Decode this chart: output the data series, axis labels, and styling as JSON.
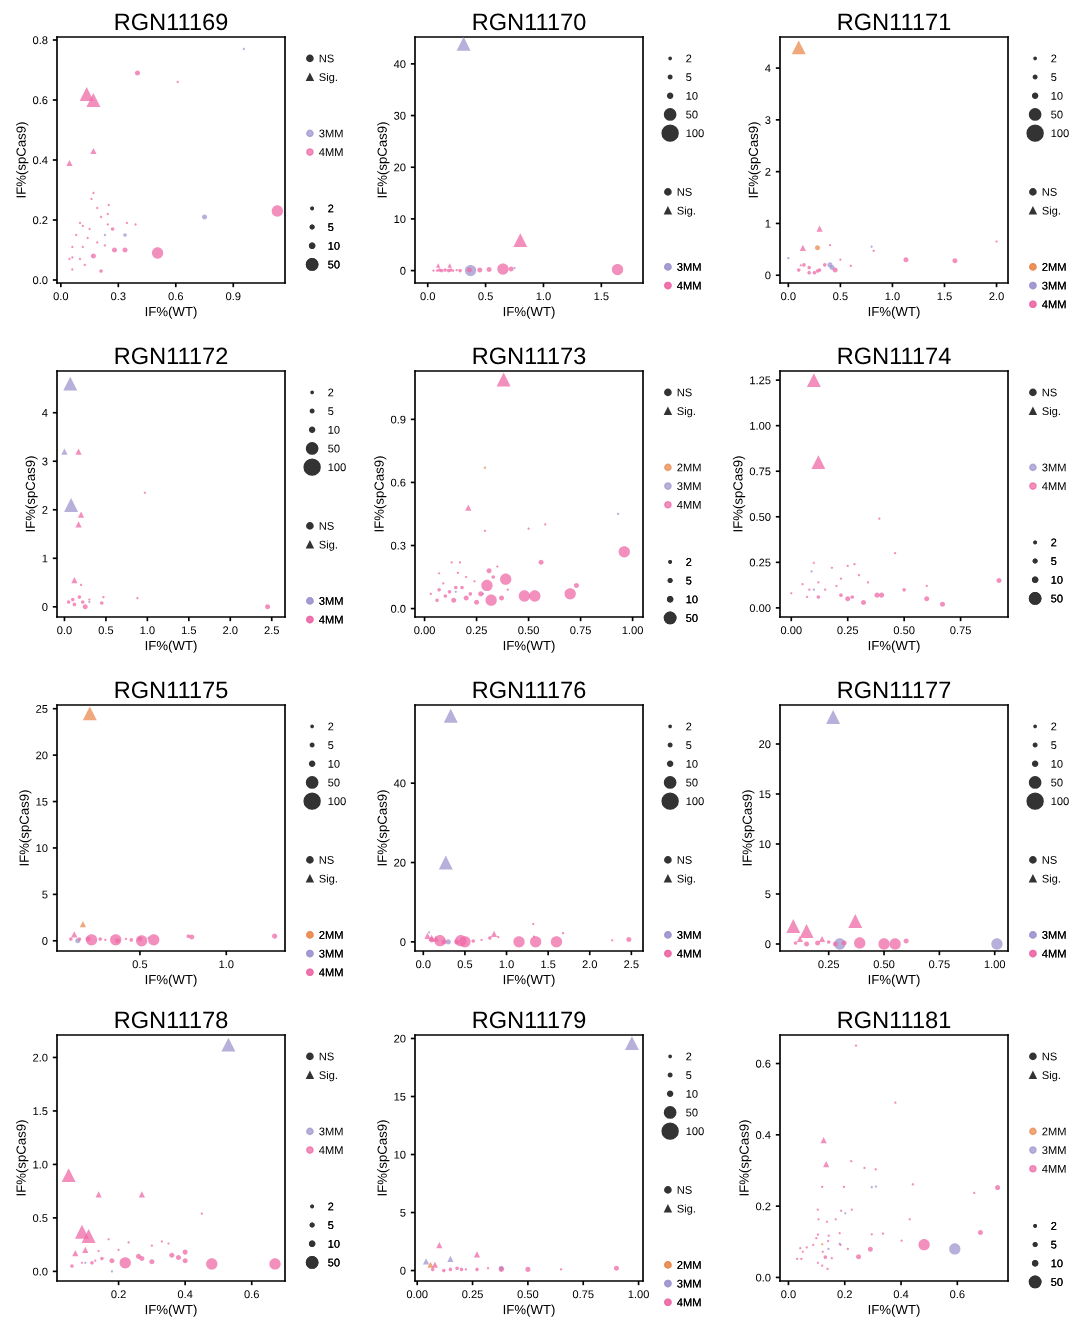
{
  "chart_data": [
    {
      "type": "bubble",
      "title": "RGN11169",
      "xlabel": "IF%(WT)",
      "ylabel": "IF%(spCas9)",
      "legend": "right",
      "xlim": [
        -0.02,
        1.17
      ],
      "ylim": [
        -0.01,
        0.81
      ],
      "xticks": [
        {
          "value": 0,
          "label": "0.0"
        },
        0.3,
        0.6,
        0.9
      ],
      "yticks": [
        {
          "value": 0,
          "label": "0.0"
        },
        0.2,
        0.4,
        0.6,
        0.8
      ],
      "size_legend": [
        2,
        5,
        10,
        50
      ],
      "series": [
        {
          "name": "NS",
          "color": "#333333",
          "marker": "circle"
        },
        {
          "name": "Sig.",
          "color": "#333333",
          "marker": "triangle"
        },
        {
          "name": "3MM",
          "color": "#9d95cf",
          "marker": "circle",
          "x": [
            0.955,
            0.75,
            0.335,
            0.23
          ],
          "values": [
            0.77,
            0.21,
            0.15,
            0.15
          ],
          "sizes": [
            2,
            10,
            5,
            2
          ]
        },
        {
          "name": "4MM",
          "color": "#ee6aa7",
          "marker": "circle",
          "x": [
            0.4,
            0.61,
            1.13,
            0.505,
            0.335,
            0.28,
            0.17,
            0.21,
            0.27,
            0.17,
            0.16,
            0.19,
            0.25,
            0.245,
            0.21,
            0.245,
            0.345,
            0.39,
            0.1,
            0.115,
            0.15,
            0.08,
            0.06,
            0.115,
            0.14,
            0.06,
            0.045,
            0.1,
            0.125,
            0.06,
            0.19,
            0.23
          ],
          "values": [
            0.69,
            0.66,
            0.23,
            0.09,
            0.1,
            0.1,
            0.08,
            0.03,
            0.17,
            0.29,
            0.27,
            0.24,
            0.25,
            0.22,
            0.21,
            0.185,
            0.19,
            0.185,
            0.19,
            0.18,
            0.17,
            0.15,
            0.11,
            0.11,
            0.14,
            0.075,
            0.07,
            0.07,
            0.05,
            0.035,
            0.125,
            0.115
          ],
          "sizes": [
            10,
            2,
            50,
            50,
            10,
            10,
            10,
            5,
            5,
            2,
            2,
            2,
            2,
            2,
            2,
            2,
            2,
            2,
            2,
            2,
            2,
            2,
            2,
            2,
            2,
            2,
            2,
            2,
            2,
            2,
            2,
            2
          ]
        },
        {
          "color": "#ee6aa7",
          "marker": "triangle",
          "x": [
            0.135,
            0.17,
            0.17,
            0.045
          ],
          "values": [
            0.62,
            0.6,
            0.43,
            0.39
          ],
          "sizes": [
            50,
            50,
            10,
            10
          ]
        }
      ]
    },
    {
      "type": "bubble",
      "title": "RGN11170",
      "xlabel": "IF%(WT)",
      "ylabel": "IF%(spCas9)",
      "legend": "right",
      "xlim": [
        -0.11,
        1.86
      ],
      "ylim": [
        -2.4,
        45.2
      ],
      "xticks": [
        {
          "value": 0,
          "label": "0.0"
        },
        0.5,
        {
          "value": 1,
          "label": "1.0"
        },
        1.5
      ],
      "yticks": [
        0,
        10,
        20,
        30,
        40
      ],
      "size_legend": [
        2,
        5,
        10,
        50,
        100
      ],
      "series": [
        {
          "name": "NS",
          "color": "#333333",
          "marker": "circle"
        },
        {
          "name": "Sig.",
          "color": "#333333",
          "marker": "triangle"
        },
        {
          "color": "#9d95cf",
          "marker": "triangle",
          "x": [
            0.31
          ],
          "values": [
            43.9
          ],
          "sizes": [
            50
          ]
        },
        {
          "color": "#ee6aa7",
          "marker": "triangle",
          "x": [
            0.8,
            0.09,
            0.19
          ],
          "values": [
            5.9,
            1.0,
            1.0
          ],
          "sizes": [
            50,
            5,
            5
          ]
        },
        {
          "name": "3MM",
          "color": "#9d95cf",
          "marker": "circle",
          "x": [
            0.37,
            0.75
          ],
          "values": [
            0.0,
            0.5
          ],
          "sizes": [
            50,
            2
          ]
        },
        {
          "name": "4MM",
          "color": "#ee6aa7",
          "marker": "circle",
          "x": [
            1.64,
            0.65,
            0.05,
            0.08,
            0.1,
            0.12,
            0.15,
            0.18,
            0.2,
            0.22,
            0.25,
            0.28,
            0.36,
            0.45,
            0.53,
            0.72
          ],
          "values": [
            0.2,
            0.3,
            0,
            0,
            0.1,
            0,
            0.1,
            0,
            0.1,
            0,
            0.1,
            0,
            0.1,
            0.1,
            0.2,
            0.3
          ],
          "sizes": [
            50,
            50,
            2,
            2,
            5,
            5,
            5,
            5,
            5,
            2,
            2,
            5,
            10,
            10,
            10,
            10
          ]
        }
      ]
    },
    {
      "type": "bubble",
      "title": "RGN11171",
      "xlabel": "IF%(WT)",
      "ylabel": "IF%(spCas9)",
      "legend": "right",
      "xlim": [
        -0.08,
        2.11
      ],
      "ylim": [
        -0.15,
        4.6
      ],
      "xticks": [
        {
          "value": 0,
          "label": "0.0"
        },
        0.5,
        {
          "value": 1,
          "label": "1.0"
        },
        1.5,
        {
          "value": 2,
          "label": "2.0"
        }
      ],
      "yticks": [
        0,
        1,
        2,
        3,
        4
      ],
      "size_legend": [
        2,
        5,
        10,
        50,
        100
      ],
      "series": [
        {
          "name": "NS",
          "color": "#333333",
          "marker": "circle"
        },
        {
          "name": "Sig.",
          "color": "#333333",
          "marker": "triangle"
        },
        {
          "color": "#ea8a4f",
          "marker": "triangle",
          "x": [
            0.1
          ],
          "values": [
            4.4
          ],
          "sizes": [
            50
          ]
        },
        {
          "name": "2MM",
          "color": "#ea8a4f",
          "marker": "circle",
          "x": [
            0.28
          ],
          "values": [
            0.53
          ],
          "sizes": [
            10
          ]
        },
        {
          "color": "#ee6aa7",
          "marker": "triangle",
          "x": [
            0.3,
            0.14,
            0.12
          ],
          "values": [
            0.9,
            0.53,
            0.2
          ],
          "sizes": [
            10,
            10,
            2
          ]
        },
        {
          "name": "3MM",
          "color": "#9d95cf",
          "marker": "circle",
          "x": [
            0.0,
            0.8,
            0.4,
            0.42
          ],
          "values": [
            0.33,
            0.55,
            0.2,
            0.15
          ],
          "sizes": [
            2,
            2,
            10,
            10
          ]
        },
        {
          "name": "4MM",
          "color": "#ee6aa7",
          "marker": "circle",
          "x": [
            1.13,
            1.6,
            2.0,
            0.6,
            0.82,
            0.4,
            0.1,
            0.15,
            0.2,
            0.25,
            0.3,
            0.35,
            0.45,
            0.5,
            0.2,
            0.28
          ],
          "values": [
            0.3,
            0.28,
            0.65,
            0.18,
            0.47,
            0.58,
            0.1,
            0.2,
            0.15,
            0.05,
            0.1,
            0.2,
            0.1,
            0.3,
            0.05,
            0.08
          ],
          "sizes": [
            10,
            10,
            2,
            2,
            2,
            2,
            5,
            5,
            5,
            5,
            5,
            5,
            10,
            2,
            5,
            5
          ]
        }
      ]
    },
    {
      "type": "bubble",
      "title": "RGN11172",
      "xlabel": "IF%(WT)",
      "ylabel": "IF%(spCas9)",
      "legend": "right",
      "xlim": [
        -0.09,
        2.66
      ],
      "ylim": [
        -0.21,
        4.86
      ],
      "xticks": [
        {
          "value": 0,
          "label": "0.0"
        },
        0.5,
        {
          "value": 1,
          "label": "1.0"
        },
        1.5,
        {
          "value": 2,
          "label": "2.0"
        },
        2.5
      ],
      "yticks": [
        0,
        1,
        2,
        3,
        4
      ],
      "size_legend": [
        2,
        5,
        10,
        50,
        100
      ],
      "series": [
        {
          "name": "NS",
          "color": "#333333",
          "marker": "circle"
        },
        {
          "name": "Sig.",
          "color": "#333333",
          "marker": "triangle"
        },
        {
          "color": "#9d95cf",
          "marker": "triangle",
          "x": [
            0.07,
            0.0,
            0.08
          ],
          "values": [
            4.6,
            3.2,
            2.1
          ],
          "sizes": [
            50,
            10,
            50
          ]
        },
        {
          "color": "#ee6aa7",
          "marker": "triangle",
          "x": [
            0.17,
            0.2,
            0.17,
            0.12
          ],
          "values": [
            3.2,
            1.9,
            1.7,
            0.55
          ],
          "sizes": [
            10,
            10,
            10,
            10
          ]
        },
        {
          "name": "3MM",
          "color": "#9d95cf",
          "marker": "circle",
          "x": [
            0.3
          ],
          "values": [
            0.1
          ],
          "sizes": [
            2
          ]
        },
        {
          "name": "4MM",
          "color": "#ee6aa7",
          "marker": "circle",
          "x": [
            0.97,
            0.88,
            2.45,
            0.47,
            0.45,
            0.2,
            0.05,
            0.1,
            0.12,
            0.18,
            0.22,
            0.25,
            0.3
          ],
          "values": [
            2.35,
            0.18,
            0.0,
            0.2,
            0.08,
            0.45,
            0.1,
            0.15,
            0.05,
            0.2,
            0.1,
            0.0,
            0.15
          ],
          "sizes": [
            2,
            2,
            10,
            2,
            5,
            2,
            5,
            5,
            5,
            5,
            5,
            10,
            2
          ]
        }
      ]
    },
    {
      "type": "bubble",
      "title": "RGN11173",
      "xlabel": "IF%(WT)",
      "ylabel": "IF%(spCas9)",
      "legend": "right",
      "xlim": [
        -0.046,
        1.05
      ],
      "ylim": [
        -0.04,
        1.13
      ],
      "xticks": [
        {
          "value": 0,
          "label": "0.00"
        },
        0.25,
        {
          "value": 0.5,
          "label": "0.50"
        },
        0.75,
        {
          "value": 1,
          "label": "1.00"
        }
      ],
      "yticks": [
        {
          "value": 0,
          "label": "0.0"
        },
        0.3,
        0.6,
        0.9
      ],
      "size_legend": [
        2,
        5,
        10,
        50
      ],
      "series": [
        {
          "name": "NS",
          "color": "#333333",
          "marker": "circle"
        },
        {
          "name": "Sig.",
          "color": "#333333",
          "marker": "triangle"
        },
        {
          "color": "#ee6aa7",
          "marker": "triangle",
          "x": [
            0.38,
            0.21,
            0.07
          ],
          "values": [
            1.09,
            0.48,
            0.17
          ],
          "sizes": [
            50,
            10,
            2
          ]
        },
        {
          "name": "2MM",
          "color": "#ea8a4f",
          "marker": "circle",
          "x": [
            0.29
          ],
          "values": [
            0.67
          ],
          "sizes": [
            2
          ]
        },
        {
          "name": "3MM",
          "color": "#9d95cf",
          "marker": "circle",
          "x": [
            0.93,
            0.28,
            0.15
          ],
          "values": [
            0.45,
            0.07,
            0.08
          ],
          "sizes": [
            2,
            2,
            2
          ]
        },
        {
          "name": "4MM",
          "color": "#ee6aa7",
          "marker": "circle",
          "x": [
            0.96,
            0.56,
            0.73,
            0.7,
            0.53,
            0.48,
            0.39,
            0.37,
            0.32,
            0.3,
            0.25,
            0.29,
            0.5,
            0.58,
            0.27,
            0.2,
            0.14,
            0.12,
            0.15,
            0.18,
            0.22,
            0.1,
            0.07,
            0.03,
            0.13,
            0.17,
            0.16,
            0.2,
            0.35,
            0.24,
            0.31,
            0.33,
            0.4,
            0.09,
            0.06
          ],
          "values": [
            0.27,
            0.22,
            0.11,
            0.07,
            0.06,
            0.06,
            0.14,
            0.05,
            0.04,
            0.11,
            0.03,
            0.37,
            0.38,
            0.4,
            0.07,
            0.05,
            0.04,
            0.08,
            0.1,
            0.1,
            0.07,
            0.06,
            0.09,
            0.07,
            0.22,
            0.22,
            0.17,
            0.15,
            0.2,
            0.13,
            0.18,
            0.15,
            0.09,
            0.12,
            0.04
          ],
          "sizes": [
            50,
            10,
            10,
            50,
            50,
            50,
            50,
            10,
            50,
            50,
            10,
            2,
            2,
            2,
            10,
            10,
            10,
            5,
            5,
            5,
            5,
            5,
            5,
            2,
            2,
            2,
            2,
            2,
            2,
            2,
            10,
            5,
            2,
            2,
            5
          ]
        }
      ]
    },
    {
      "type": "bubble",
      "title": "RGN11174",
      "xlabel": "IF%(WT)",
      "ylabel": "IF%(spCas9)",
      "legend": "right",
      "xlim": [
        -0.05,
        0.96
      ],
      "ylim": [
        -0.05,
        1.3
      ],
      "xticks": [
        {
          "value": 0,
          "label": "0.00"
        },
        0.25,
        {
          "value": 0.5,
          "label": "0.50"
        },
        0.75
      ],
      "yticks": [
        {
          "value": 0,
          "label": "0.00"
        },
        0.25,
        {
          "value": 0.5,
          "label": "0.50"
        },
        0.75,
        {
          "value": 1,
          "label": "1.00"
        },
        1.25
      ],
      "size_legend": [
        2,
        5,
        10,
        50
      ],
      "series": [
        {
          "name": "NS",
          "color": "#333333",
          "marker": "circle"
        },
        {
          "name": "Sig.",
          "color": "#333333",
          "marker": "triangle"
        },
        {
          "color": "#ee6aa7",
          "marker": "triangle",
          "x": [
            0.1,
            0.12,
            0.1
          ],
          "values": [
            1.25,
            0.8,
            0.25
          ],
          "sizes": [
            50,
            50,
            2
          ]
        },
        {
          "name": "3MM",
          "color": "#9d95cf",
          "marker": "circle",
          "x": [
            0.09,
            0.1
          ],
          "values": [
            0.2,
            0.1
          ],
          "sizes": [
            2,
            2
          ]
        },
        {
          "name": "4MM",
          "color": "#ee6aa7",
          "marker": "circle",
          "x": [
            0.92,
            0.67,
            0.6,
            0.5,
            0.4,
            0.38,
            0.32,
            0.25,
            0.22,
            0.39,
            0.46,
            0.6,
            0.28,
            0.25,
            0.18,
            0.12,
            0.05,
            0.0,
            0.07,
            0.15,
            0.2,
            0.3,
            0.12,
            0.08,
            0.34,
            0.22,
            0.27
          ],
          "values": [
            0.15,
            0.02,
            0.05,
            0.1,
            0.07,
            0.07,
            0.03,
            0.05,
            0.07,
            0.49,
            0.3,
            0.12,
            0.24,
            0.23,
            0.22,
            0.14,
            0.13,
            0.08,
            0.06,
            0.1,
            0.12,
            0.18,
            0.06,
            0.1,
            0.14,
            0.16,
            0.06
          ],
          "sizes": [
            10,
            10,
            10,
            5,
            10,
            10,
            10,
            10,
            5,
            2,
            2,
            2,
            2,
            2,
            2,
            2,
            2,
            2,
            2,
            2,
            2,
            2,
            5,
            2,
            2,
            2,
            5
          ]
        }
      ]
    },
    {
      "type": "bubble",
      "title": "RGN11175",
      "xlabel": "IF%(WT)",
      "ylabel": "IF%(spCas9)",
      "legend": "right",
      "xlim": [
        0.02,
        1.34
      ],
      "ylim": [
        -1.1,
        25.4
      ],
      "xticks": [
        0.5,
        {
          "value": 1,
          "label": "1.0"
        }
      ],
      "yticks": [
        0,
        5,
        10,
        15,
        20,
        25
      ],
      "size_legend": [
        2,
        5,
        10,
        50,
        100
      ],
      "series": [
        {
          "name": "NS",
          "color": "#333333",
          "marker": "circle"
        },
        {
          "name": "Sig.",
          "color": "#333333",
          "marker": "triangle"
        },
        {
          "name": "2MM",
          "color": "#ea8a4f",
          "marker": "triangle",
          "x": [
            0.21,
            0.17
          ],
          "values": [
            24.5,
            1.8
          ],
          "sizes": [
            50,
            10
          ]
        },
        {
          "color": "#ee6aa7",
          "marker": "triangle",
          "x": [
            0.12
          ],
          "values": [
            0.7
          ],
          "sizes": [
            10
          ]
        },
        {
          "name": "3MM",
          "color": "#9d95cf",
          "marker": "circle",
          "x": [
            0.14,
            0.55
          ],
          "values": [
            0.0,
            0.3
          ],
          "sizes": [
            10,
            2
          ]
        },
        {
          "name": "4MM",
          "color": "#ee6aa7",
          "marker": "circle",
          "x": [
            1.28,
            0.78,
            0.8,
            0.58,
            0.51,
            0.5,
            0.36,
            0.37,
            0.27,
            0.22,
            0.2,
            0.1,
            0.15,
            0.3,
            0.42,
            0.45
          ],
          "values": [
            0.5,
            0.5,
            0.4,
            0.1,
            0.0,
            0.2,
            0.1,
            0.0,
            0.2,
            0.1,
            0.2,
            0.2,
            0.2,
            0.1,
            0.2,
            0.1
          ],
          "sizes": [
            10,
            5,
            10,
            50,
            50,
            10,
            50,
            10,
            5,
            50,
            10,
            5,
            5,
            2,
            2,
            5
          ]
        }
      ]
    },
    {
      "type": "bubble",
      "title": "RGN11176",
      "xlabel": "IF%(WT)",
      "ylabel": "IF%(spCas9)",
      "legend": "right",
      "xlim": [
        -0.1,
        2.64
      ],
      "ylim": [
        -2.3,
        59.7
      ],
      "xticks": [
        {
          "value": 0,
          "label": "0.0"
        },
        0.5,
        {
          "value": 1,
          "label": "1.0"
        },
        1.5,
        {
          "value": 2,
          "label": "2.0"
        },
        2.5
      ],
      "yticks": [
        0,
        20,
        40
      ],
      "size_legend": [
        2,
        5,
        10,
        50,
        100
      ],
      "series": [
        {
          "name": "NS",
          "color": "#333333",
          "marker": "circle"
        },
        {
          "name": "Sig.",
          "color": "#333333",
          "marker": "triangle"
        },
        {
          "color": "#9d95cf",
          "marker": "triangle",
          "x": [
            0.33,
            0.27,
            0.07
          ],
          "values": [
            57,
            20,
            2.5
          ],
          "sizes": [
            50,
            50,
            2
          ]
        },
        {
          "name": "3MM",
          "color": "#9d95cf",
          "marker": "circle",
          "x": [
            0.3
          ],
          "values": [
            0.0
          ],
          "sizes": [
            10
          ]
        },
        {
          "color": "#ee6aa7",
          "marker": "triangle",
          "x": [
            0.05,
            0.1,
            0.15,
            0.85
          ],
          "values": [
            1.5,
            1.0,
            0.8,
            2.0
          ],
          "sizes": [
            10,
            10,
            10,
            10
          ]
        },
        {
          "name": "4MM",
          "color": "#ee6aa7",
          "marker": "circle",
          "x": [
            2.47,
            2.27,
            1.68,
            1.6,
            1.35,
            1.32,
            1.33,
            1.15,
            0.9,
            0.8,
            0.5,
            0.45,
            0.4,
            0.2,
            0.25,
            0.1,
            0.6,
            0.7
          ],
          "values": [
            0.6,
            0.4,
            2.2,
            0.0,
            0.0,
            4.5,
            1.3,
            0.0,
            1.2,
            1.0,
            0.0,
            0.3,
            0.0,
            0.3,
            0.0,
            0.5,
            0.2,
            0.5
          ],
          "sizes": [
            10,
            2,
            2,
            50,
            50,
            2,
            2,
            50,
            2,
            5,
            50,
            50,
            10,
            50,
            10,
            10,
            5,
            2
          ]
        }
      ]
    },
    {
      "type": "bubble",
      "title": "RGN11177",
      "xlabel": "IF%(WT)",
      "ylabel": "IF%(spCas9)",
      "legend": "right",
      "xlim": [
        0.03,
        1.06
      ],
      "ylim": [
        -0.7,
        23.9
      ],
      "xticks": [
        0.25,
        {
          "value": 0.5,
          "label": "0.50"
        },
        0.75,
        {
          "value": 1,
          "label": "1.00"
        }
      ],
      "yticks": [
        0,
        5,
        10,
        15,
        20
      ],
      "size_legend": [
        2,
        5,
        10,
        50,
        100
      ],
      "series": [
        {
          "name": "NS",
          "color": "#333333",
          "marker": "circle"
        },
        {
          "name": "Sig.",
          "color": "#333333",
          "marker": "triangle"
        },
        {
          "color": "#9d95cf",
          "marker": "triangle",
          "x": [
            0.27
          ],
          "values": [
            22.7
          ],
          "sizes": [
            50
          ]
        },
        {
          "color": "#ee6aa7",
          "marker": "triangle",
          "x": [
            0.09,
            0.15,
            0.12,
            0.37,
            0.22
          ],
          "values": [
            1.8,
            1.3,
            0.5,
            2.3,
            0.5
          ],
          "sizes": [
            50,
            50,
            10,
            50,
            10
          ]
        },
        {
          "name": "3MM",
          "color": "#9d95cf",
          "marker": "circle",
          "x": [
            1.01,
            0.3
          ],
          "values": [
            0.0,
            0.0
          ],
          "sizes": [
            50,
            50
          ]
        },
        {
          "name": "4MM",
          "color": "#ee6aa7",
          "marker": "circle",
          "x": [
            0.6,
            0.55,
            0.5,
            0.39,
            0.32,
            0.28,
            0.2,
            0.15,
            0.1,
            0.25
          ],
          "values": [
            0.3,
            0.0,
            0.0,
            0.1,
            0.1,
            0.0,
            0.1,
            0.0,
            0.1,
            0.2
          ],
          "sizes": [
            10,
            50,
            50,
            50,
            10,
            10,
            10,
            10,
            5,
            5
          ]
        }
      ]
    },
    {
      "type": "bubble",
      "title": "RGN11178",
      "xlabel": "IF%(WT)",
      "ylabel": "IF%(spCas9)",
      "legend": "right",
      "xlim": [
        0.015,
        0.7
      ],
      "ylim": [
        -0.09,
        2.21
      ],
      "xticks": [
        0.2,
        0.4,
        0.6
      ],
      "yticks": [
        {
          "value": 0,
          "label": "0.0"
        },
        0.5,
        {
          "value": 1,
          "label": "1.0"
        },
        1.5,
        {
          "value": 2,
          "label": "2.0"
        }
      ],
      "size_legend": [
        2,
        5,
        10,
        50
      ],
      "series": [
        {
          "name": "NS",
          "color": "#333333",
          "marker": "circle"
        },
        {
          "name": "Sig.",
          "color": "#333333",
          "marker": "triangle"
        },
        {
          "color": "#9d95cf",
          "marker": "triangle",
          "x": [
            0.53
          ],
          "values": [
            2.12
          ],
          "sizes": [
            50
          ]
        },
        {
          "color": "#ee6aa7",
          "marker": "triangle",
          "x": [
            0.05,
            0.14,
            0.27,
            0.09,
            0.11,
            0.1,
            0.07
          ],
          "values": [
            0.9,
            0.72,
            0.72,
            0.37,
            0.33,
            0.2,
            0.17
          ],
          "sizes": [
            50,
            10,
            10,
            50,
            50,
            10,
            10
          ]
        },
        {
          "name": "3MM",
          "color": "#9d95cf",
          "marker": "circle",
          "x": [
            0.18,
            0.1
          ],
          "values": [
            0.0,
            0.08
          ],
          "sizes": [
            2,
            2
          ]
        },
        {
          "name": "4MM",
          "color": "#ee6aa7",
          "marker": "circle",
          "x": [
            0.67,
            0.48,
            0.45,
            0.4,
            0.4,
            0.36,
            0.38,
            0.3,
            0.27,
            0.26,
            0.22,
            0.18,
            0.15,
            0.12,
            0.06,
            0.17,
            0.2,
            0.23,
            0.3,
            0.33,
            0.35,
            0.13,
            0.09,
            0.14
          ],
          "values": [
            0.07,
            0.07,
            0.54,
            0.18,
            0.1,
            0.15,
            0.13,
            0.09,
            0.12,
            0.14,
            0.08,
            0.1,
            0.12,
            0.08,
            0.05,
            0.3,
            0.2,
            0.27,
            0.24,
            0.28,
            0.26,
            0.1,
            0.08,
            0.19
          ],
          "sizes": [
            50,
            50,
            2,
            10,
            10,
            10,
            10,
            10,
            10,
            10,
            50,
            10,
            5,
            5,
            5,
            2,
            2,
            2,
            2,
            2,
            2,
            2,
            2,
            2
          ]
        }
      ]
    },
    {
      "type": "bubble",
      "title": "RGN11179",
      "xlabel": "IF%(WT)",
      "ylabel": "IF%(spCas9)",
      "legend": "right",
      "xlim": [
        -0.01,
        1.02
      ],
      "ylim": [
        -0.9,
        20.3
      ],
      "xticks": [
        {
          "value": 0,
          "label": "0.00"
        },
        0.25,
        {
          "value": 0.5,
          "label": "0.50"
        },
        0.75,
        {
          "value": 1,
          "label": "1.00"
        }
      ],
      "yticks": [
        0,
        5,
        10,
        15,
        20
      ],
      "size_legend": [
        2,
        5,
        10,
        50,
        100
      ],
      "series": [
        {
          "name": "NS",
          "color": "#333333",
          "marker": "circle"
        },
        {
          "name": "Sig.",
          "color": "#333333",
          "marker": "triangle"
        },
        {
          "color": "#9d95cf",
          "marker": "triangle",
          "x": [
            0.97,
            0.04,
            0.15
          ],
          "values": [
            19.6,
            0.8,
            1.0
          ],
          "sizes": [
            50,
            10,
            10
          ]
        },
        {
          "color": "#ee6aa7",
          "marker": "triangle",
          "x": [
            0.1,
            0.27,
            0.08
          ],
          "values": [
            2.2,
            1.4,
            0.5
          ],
          "sizes": [
            10,
            10,
            10
          ]
        },
        {
          "name": "2MM",
          "color": "#ea8a4f",
          "marker": "triangle",
          "x": [
            0.06
          ],
          "values": [
            0.5
          ],
          "sizes": [
            10
          ]
        },
        {
          "name": "3MM",
          "color": "#9d95cf",
          "marker": "circle",
          "x": [
            0.38
          ],
          "values": [
            0.2
          ],
          "sizes": [
            10
          ]
        },
        {
          "name": "4MM",
          "color": "#ee6aa7",
          "marker": "circle",
          "x": [
            0.9,
            0.65,
            0.5,
            0.38,
            0.27,
            0.2,
            0.15,
            0.12,
            0.18,
            0.22,
            0.32,
            0.07
          ],
          "values": [
            0.2,
            0.1,
            0.1,
            0.1,
            0.1,
            0.1,
            0.1,
            0.0,
            0.2,
            0.1,
            0.2,
            0.1
          ],
          "sizes": [
            10,
            2,
            10,
            10,
            5,
            5,
            5,
            5,
            5,
            2,
            2,
            5
          ]
        }
      ]
    },
    {
      "type": "bubble",
      "title": "RGN11181",
      "xlabel": "IF%(WT)",
      "ylabel": "IF%(spCas9)",
      "legend": "right",
      "xlim": [
        -0.03,
        0.78
      ],
      "ylim": [
        -0.01,
        0.68
      ],
      "xticks": [
        {
          "value": 0,
          "label": "0.0"
        },
        0.2,
        0.4,
        0.6
      ],
      "yticks": [
        {
          "value": 0,
          "label": "0.0"
        },
        0.2,
        0.4,
        0.6
      ],
      "size_legend": [
        2,
        5,
        10,
        50
      ],
      "series": [
        {
          "name": "NS",
          "color": "#333333",
          "marker": "circle"
        },
        {
          "name": "Sig.",
          "color": "#333333",
          "marker": "triangle"
        },
        {
          "color": "#ee6aa7",
          "marker": "triangle",
          "x": [
            0.125,
            0.134
          ],
          "values": [
            0.385,
            0.318
          ],
          "sizes": [
            10,
            10
          ]
        },
        {
          "name": "2MM",
          "color": "#ea8a4f",
          "marker": "circle",
          "x": [
            0.12
          ],
          "values": [
            0.093
          ],
          "sizes": [
            2
          ]
        },
        {
          "name": "3MM",
          "color": "#9d95cf",
          "marker": "circle",
          "x": [
            0.591,
            0.296,
            0.311,
            0.202,
            0.182,
            0.142
          ],
          "values": [
            0.08,
            0.253,
            0.255,
            0.18,
            0.094,
            0.08
          ],
          "sizes": [
            50,
            2,
            2,
            2,
            2,
            2
          ]
        },
        {
          "name": "4MM",
          "color": "#ee6aa7",
          "marker": "circle",
          "x": [
            0.24,
            0.38,
            0.223,
            0.27,
            0.31,
            0.12,
            0.197,
            0.442,
            0.66,
            0.743,
            0.104,
            0.225,
            0.187,
            0.107,
            0.137,
            0.168,
            0.431,
            0.682,
            0.482,
            0.291,
            0.249,
            0.182,
            0.296,
            0.336,
            0.402,
            0.211,
            0.105,
            0.099,
            0.143,
            0.141,
            0.042,
            0.065,
            0.051,
            0.031,
            0.046,
            0.105,
            0.12,
            0.139,
            0.131,
            0.154,
            0.122,
            0.088,
            0.185
          ],
          "values": [
            0.65,
            0.49,
            0.326,
            0.307,
            0.303,
            0.254,
            0.254,
            0.261,
            0.237,
            0.252,
            0.19,
            0.19,
            0.187,
            0.163,
            0.156,
            0.163,
            0.163,
            0.126,
            0.092,
            0.079,
            0.058,
            0.124,
            0.121,
            0.123,
            0.103,
            0.08,
            0.12,
            0.11,
            0.117,
            0.102,
            0.082,
            0.084,
            0.072,
            0.052,
            0.052,
            0.041,
            0.033,
            0.024,
            0.057,
            0.054,
            0.072,
            0.091,
            0.091
          ],
          "sizes": [
            2,
            2,
            2,
            2,
            2,
            2,
            2,
            2,
            2,
            10,
            2,
            2,
            2,
            2,
            2,
            2,
            2,
            10,
            50,
            10,
            10,
            2,
            2,
            2,
            2,
            2,
            2,
            2,
            2,
            2,
            2,
            2,
            2,
            2,
            2,
            2,
            2,
            2,
            5,
            2,
            2,
            2,
            2
          ]
        }
      ]
    }
  ]
}
